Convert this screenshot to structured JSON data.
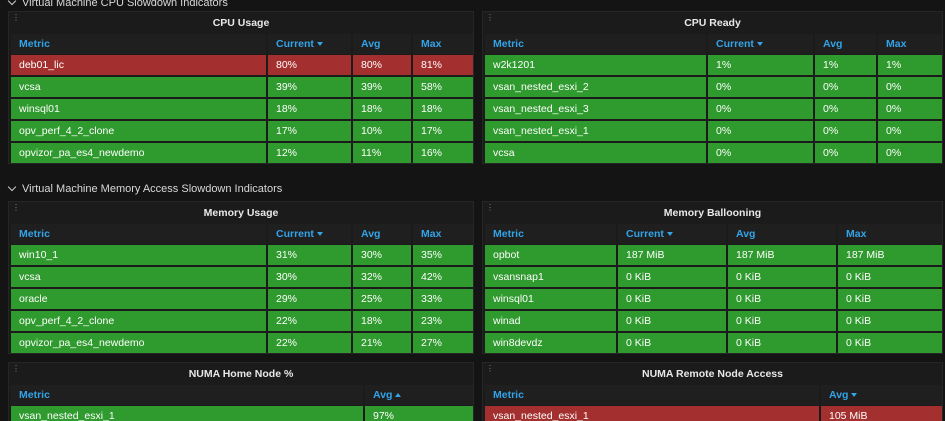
{
  "sections": [
    {
      "title": "Virtual Machine CPU Slowdown Indicators",
      "panels": [
        {
          "title": "CPU Usage",
          "columns": [
            "Metric",
            "Current",
            "Avg",
            "Max"
          ],
          "sort": {
            "column": 1,
            "direction": "desc"
          },
          "rows": [
            [
              "deb01_lic",
              "80%",
              "80%",
              "81%"
            ],
            [
              "vcsa",
              "39%",
              "39%",
              "58%"
            ],
            [
              "winsql01",
              "18%",
              "18%",
              "18%"
            ],
            [
              "opv_perf_4_2_clone",
              "17%",
              "10%",
              "17%"
            ],
            [
              "opvizor_pa_es4_newdemo",
              "12%",
              "11%",
              "16%"
            ]
          ],
          "row_colors": [
            "#a3302f",
            "#2f9a2e",
            "#2f9a2e",
            "#2f9a2e",
            "#2f9a2e"
          ]
        },
        {
          "title": "CPU Ready",
          "columns": [
            "Metric",
            "Current",
            "Avg",
            "Max"
          ],
          "sort": {
            "column": 1,
            "direction": "desc"
          },
          "rows": [
            [
              "w2k1201",
              "1%",
              "1%",
              "1%"
            ],
            [
              "vsan_nested_esxi_2",
              "0%",
              "0%",
              "0%"
            ],
            [
              "vsan_nested_esxi_3",
              "0%",
              "0%",
              "0%"
            ],
            [
              "vsan_nested_esxi_1",
              "0%",
              "0%",
              "0%"
            ],
            [
              "vcsa",
              "0%",
              "0%",
              "0%"
            ]
          ],
          "row_colors": [
            "#2f9a2e",
            "#2f9a2e",
            "#2f9a2e",
            "#2f9a2e",
            "#2f9a2e"
          ]
        }
      ]
    },
    {
      "title": "Virtual Machine Memory Access Slowdown Indicators",
      "panels": [
        {
          "title": "Memory Usage",
          "columns": [
            "Metric",
            "Current",
            "Avg",
            "Max"
          ],
          "sort": {
            "column": 1,
            "direction": "desc"
          },
          "rows": [
            [
              "win10_1",
              "31%",
              "30%",
              "35%"
            ],
            [
              "vcsa",
              "30%",
              "32%",
              "42%"
            ],
            [
              "oracle",
              "29%",
              "25%",
              "33%"
            ],
            [
              "opv_perf_4_2_clone",
              "22%",
              "18%",
              "23%"
            ],
            [
              "opvizor_pa_es4_newdemo",
              "22%",
              "21%",
              "27%"
            ]
          ],
          "row_colors": [
            "#2f9a2e",
            "#2f9a2e",
            "#2f9a2e",
            "#2f9a2e",
            "#2f9a2e"
          ]
        },
        {
          "title": "Memory Ballooning",
          "columns": [
            "Metric",
            "Current",
            "Avg",
            "Max"
          ],
          "sort": {
            "column": 1,
            "direction": "desc"
          },
          "rows": [
            [
              "opbot",
              "187 MiB",
              "187 MiB",
              "187 MiB"
            ],
            [
              "vsansnap1",
              "0 KiB",
              "0 KiB",
              "0 KiB"
            ],
            [
              "winsql01",
              "0 KiB",
              "0 KiB",
              "0 KiB"
            ],
            [
              "winad",
              "0 KiB",
              "0 KiB",
              "0 KiB"
            ],
            [
              "win8devdz",
              "0 KiB",
              "0 KiB",
              "0 KiB"
            ]
          ],
          "row_colors": [
            "#2f9a2e",
            "#2f9a2e",
            "#2f9a2e",
            "#2f9a2e",
            "#2f9a2e"
          ]
        },
        {
          "title": "NUMA Home Node %",
          "columns": [
            "Metric",
            "Avg"
          ],
          "sort": {
            "column": 1,
            "direction": "asc"
          },
          "rows": [
            [
              "vsan_nested_esxi_1",
              "97%"
            ]
          ],
          "row_colors": [
            "#2f9a2e"
          ]
        },
        {
          "title": "NUMA Remote Node Access",
          "columns": [
            "Metric",
            "Avg"
          ],
          "sort": {
            "column": 1,
            "direction": "desc"
          },
          "rows": [
            [
              "vsan_nested_esxi_1",
              "105 MiB"
            ]
          ],
          "row_colors": [
            "#a3302f"
          ]
        }
      ]
    }
  ]
}
